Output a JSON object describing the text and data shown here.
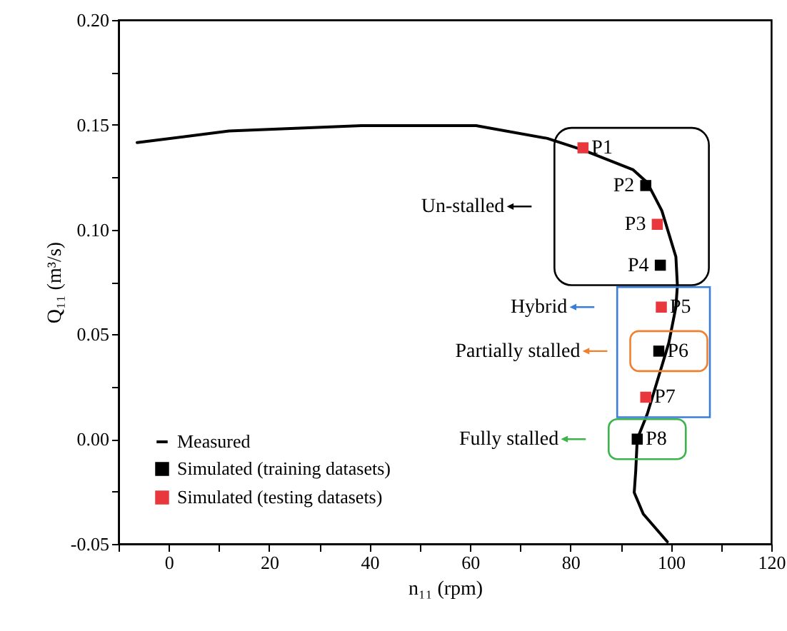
{
  "chart_data": {
    "type": "line",
    "xlabel": "n₁₁ (rpm)",
    "ylabel": "Q₁₁ (m³/s)",
    "xlim": [
      -10,
      120
    ],
    "ylim": [
      -0.05,
      0.2
    ],
    "xticks": [
      {
        "value": -10,
        "label": null
      },
      0,
      {
        "value": 10,
        "label": null
      },
      20,
      {
        "value": 30,
        "label": null
      },
      40,
      {
        "value": 50,
        "label": null
      },
      60,
      {
        "value": 70,
        "label": null
      },
      80,
      {
        "value": 90,
        "label": null
      },
      100,
      {
        "value": 110,
        "label": null
      },
      120
    ],
    "yticks": [
      -0.05,
      {
        "value": -0.025,
        "label": null
      },
      {
        "value": 0,
        "label": "0.00"
      },
      {
        "value": 0.025,
        "label": null
      },
      0.05,
      {
        "value": 0.075,
        "label": null
      },
      {
        "value": 0.1,
        "label": "0.10"
      },
      {
        "value": 0.125,
        "label": null
      },
      0.15,
      {
        "value": 0.175,
        "label": null
      },
      {
        "value": 0.2,
        "label": "0.20"
      }
    ],
    "grid": false,
    "legend": "bottom left",
    "line_style": "solid",
    "series": [
      {
        "name": "Measured",
        "type": "line",
        "color": "#000000",
        "x": [
          -6.3,
          12,
          38.4,
          61.2,
          75.4,
          82.5,
          92.5,
          95.3,
          98.2,
          101,
          101.3,
          101,
          99.6,
          97.9,
          95.3,
          93.3,
          93,
          92.7,
          94.5,
          99.3
        ],
        "values": [
          0.1415,
          0.147,
          0.1496,
          0.1496,
          0.1435,
          0.138,
          0.1285,
          0.1224,
          0.109,
          0.087,
          0.0733,
          0.063,
          0.046,
          0.0325,
          0.012,
          0,
          -0.0153,
          -0.0255,
          -0.0357,
          -0.049
        ]
      },
      {
        "name": "Simulated (training datasets)",
        "type": "scatter",
        "marker": "square",
        "color": "#000000",
        "x": [
          95,
          97.9,
          97.6,
          93.3
        ],
        "values": [
          0.121,
          0.083,
          0.042,
          0
        ]
      },
      {
        "name": "Simulated (testing datasets)",
        "type": "scatter",
        "marker": "square",
        "color": "#e8383d",
        "x": [
          82.5,
          97.3,
          98.1,
          95
        ],
        "values": [
          0.139,
          0.1025,
          0.063,
          0.02
        ]
      }
    ],
    "annotations": [
      {
        "text": "P1",
        "x": 82.5,
        "y": 0.139
      },
      {
        "text": "P2",
        "x": 95,
        "y": 0.121
      },
      {
        "text": "P3",
        "x": 97.3,
        "y": 0.1025
      },
      {
        "text": "P4",
        "x": 97.9,
        "y": 0.083
      },
      {
        "text": "P5",
        "x": 98.1,
        "y": 0.063
      },
      {
        "text": "P6",
        "x": 97.6,
        "y": 0.042
      },
      {
        "text": "P7",
        "x": 95,
        "y": 0.02
      },
      {
        "text": "P8",
        "x": 93.3,
        "y": 0
      },
      "Un-stalled",
      "Hybrid",
      "Partially stalled",
      "Fully stalled"
    ]
  }
}
